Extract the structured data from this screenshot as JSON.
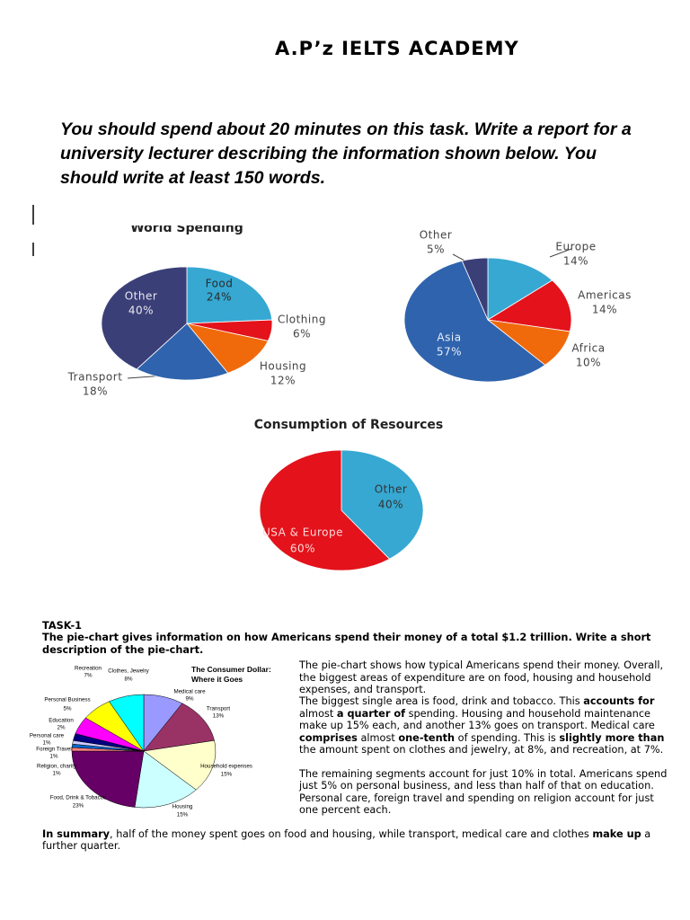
{
  "header": {
    "title": "A.P’z IELTS ACADEMY"
  },
  "instructions": "You should spend about 20 minutes on this task. Write a report for a university lecturer describing the information shown below. You should write at least 150 words.",
  "chart_data": [
    {
      "type": "pie",
      "title": "World Spending",
      "categories": [
        "Food",
        "Clothing",
        "Housing",
        "Transport",
        "Other"
      ],
      "values": [
        24,
        6,
        12,
        18,
        40
      ],
      "value_labels": [
        "24%",
        "6%",
        "12%",
        "18%",
        "40%"
      ],
      "colors": [
        "#36a8d2",
        "#e3121b",
        "#f06a0c",
        "#2f63ad",
        "#3b3f78"
      ]
    },
    {
      "type": "pie",
      "categories": [
        "Europe",
        "Americas",
        "Africa",
        "Asia",
        "Other"
      ],
      "values": [
        14,
        14,
        10,
        57,
        5
      ],
      "value_labels": [
        "14%",
        "14%",
        "10%",
        "57%",
        "5%"
      ],
      "colors": [
        "#36a8d2",
        "#e3121b",
        "#f06a0c",
        "#2f63ad",
        "#3b3f78"
      ]
    },
    {
      "type": "pie",
      "title": "Consumption of Resources",
      "categories": [
        "Other",
        "USA & Europe"
      ],
      "values": [
        40,
        60
      ],
      "value_labels": [
        "40%",
        "60%"
      ],
      "colors": [
        "#36a8d2",
        "#e3121b"
      ]
    },
    {
      "type": "pie",
      "title": "The Consumer Dollar: Where it Goes",
      "categories": [
        "Medical care",
        "Transport",
        "Household expenses",
        "Housing",
        "Food, Drink & Tobacco",
        "Religion, charity",
        "Foreign Travel",
        "Personal care",
        "Education",
        "Personal Business",
        "Recreation",
        "Clothes, Jewelry"
      ],
      "values": [
        9,
        13,
        15,
        15,
        23,
        1,
        1,
        1,
        2,
        5,
        7,
        8
      ],
      "value_labels": [
        "9%",
        "13%",
        "15%",
        "15%",
        "23%",
        "1%",
        "1%",
        "1%",
        "2%",
        "5%",
        "7%",
        "8%"
      ],
      "colors": [
        "#9999ff",
        "#993366",
        "#ffffcc",
        "#ccffff",
        "#660066",
        "#ff8080",
        "#0066cc",
        "#ccccff",
        "#000080",
        "#ff00ff",
        "#ffff00",
        "#00ffff"
      ]
    }
  ],
  "task": {
    "label": "TASK-1",
    "prompt": "The pie-chart gives information on how Americans spend their money of a total $1.2 trillion. Write a short description of the pie-chart."
  },
  "essay": {
    "paragraphs": [
      [
        " The pie-chart shows how typical Americans spend their money. Overall, the biggest areas of expenditure are on food, housing and household expenses, and transport."
      ],
      [
        "The biggest single area is food, drink and tobacco. This ",
        {
          "text": "accounts for",
          "bold": true
        },
        " almost ",
        {
          "text": "a quarter of",
          "bold": true
        },
        " spending. Housing and household maintenance make up 15% each, and another 13% goes on transport. Medical care ",
        {
          "text": "comprises",
          "bold": true
        },
        " almost ",
        {
          "text": "one-tenth",
          "bold": true
        },
        " of spending. This is ",
        {
          "text": "slightly more than",
          "bold": true
        },
        " the amount spent on clothes and jewelry, at 8%, and recreation, at 7%."
      ],
      [
        "The remaining segments account for just 10% in total. Americans spend just 5% on personal business, and less than half of that on education. Personal care, foreign travel and spending on religion account for just one percent each."
      ],
      [
        {
          "text": "In summary",
          "bold": true
        },
        ", half of the money spent goes on food and housing, while transport, medical care and clothes ",
        {
          "text": "make up",
          "bold": true
        },
        " a further quarter."
      ]
    ]
  }
}
